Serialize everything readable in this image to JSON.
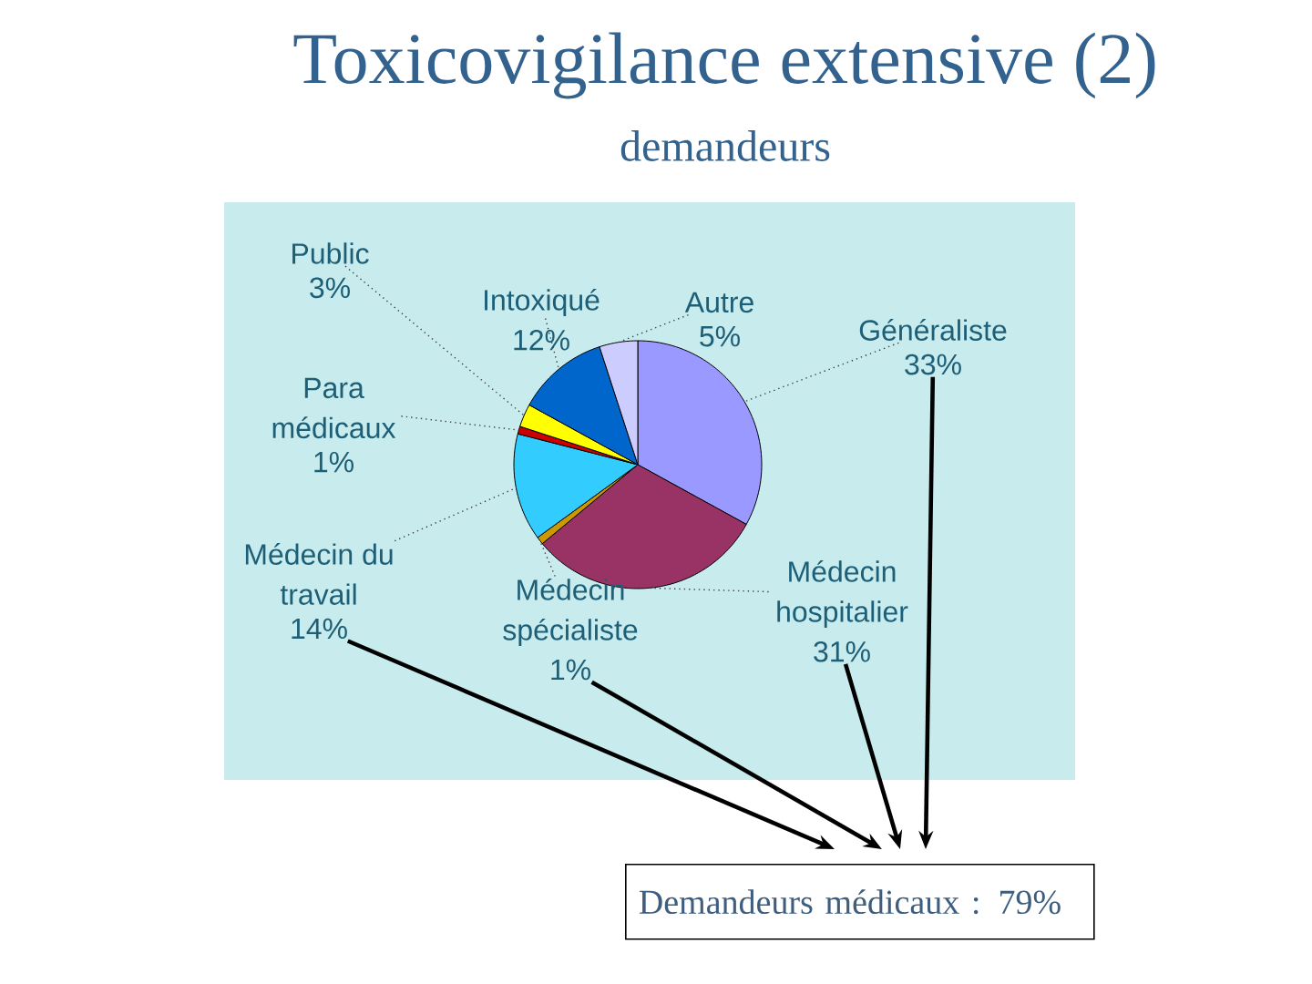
{
  "chart_data": {
    "type": "pie",
    "title": "Toxicovigilance extensive (2)",
    "subtitle": "demandeurs",
    "categories": [
      "Généraliste",
      "Médecin hospitalier",
      "Médecin spécialiste",
      "Médecin du travail",
      "Para médicaux",
      "Public",
      "Intoxiqué",
      "Autre"
    ],
    "values": [
      33,
      31,
      1,
      14,
      1,
      3,
      12,
      5
    ],
    "value_labels": [
      "33%",
      "31%",
      "1%",
      "14%",
      "1%",
      "3%",
      "12%",
      "5%"
    ],
    "colors": [
      "#9999ff",
      "#993366",
      "#cc9900",
      "#33ccff",
      "#cc0000",
      "#ffff00",
      "#0066cc",
      "#ccccff"
    ],
    "annotations": [
      "Demandeurs médicaux : 79%"
    ]
  }
}
